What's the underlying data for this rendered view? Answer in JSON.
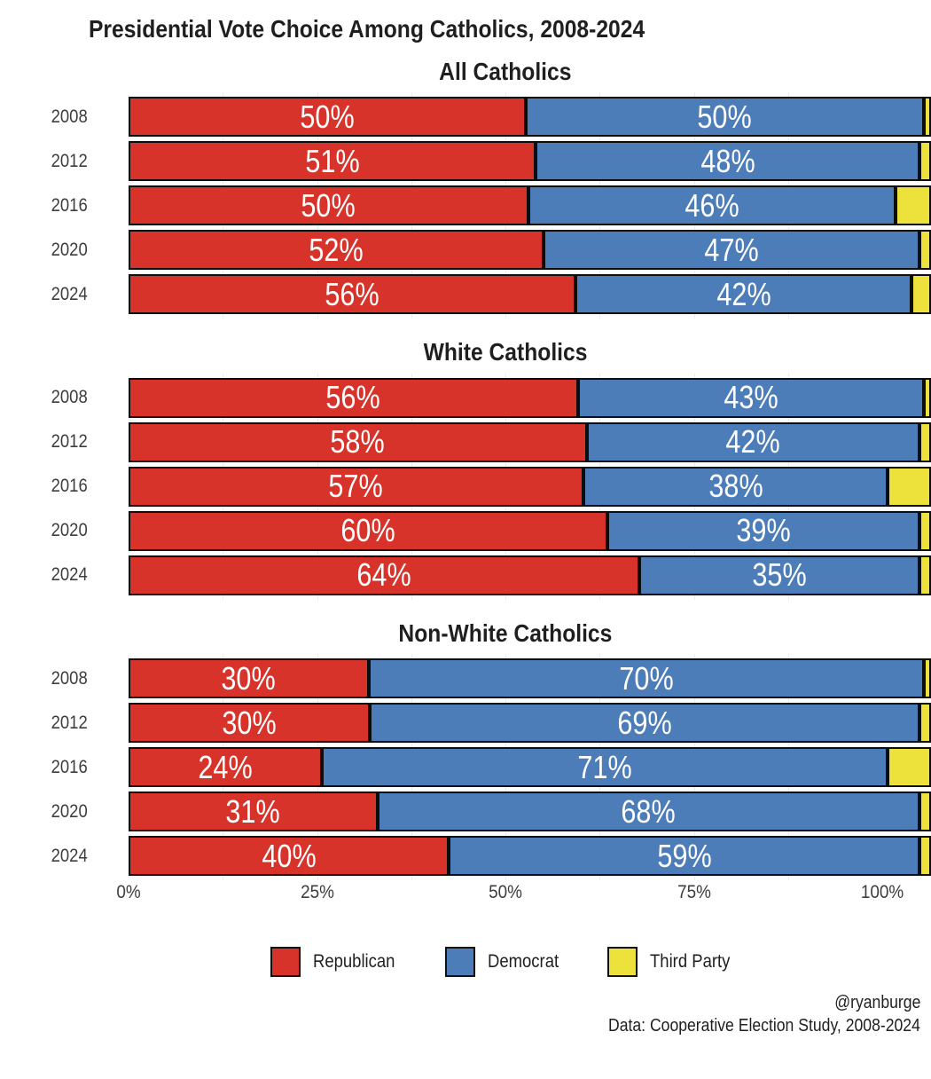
{
  "page": {
    "main_title": "Presidential Vote Choice Among Catholics, 2008-2024",
    "attribution_handle": "@ryanburge",
    "attribution_source": "Data: Cooperative Election Study, 2008-2024"
  },
  "colors": {
    "republican": "#d8332a",
    "democrat": "#4d7db9",
    "third_party": "#ede23c",
    "bar_border": "#0d0d0d"
  },
  "legend": {
    "items": [
      {
        "label": "Republican",
        "key": "republican"
      },
      {
        "label": "Democrat",
        "key": "democrat"
      },
      {
        "label": "Third Party",
        "key": "third-party"
      }
    ]
  },
  "x_axis": {
    "tick_labels": [
      "0%",
      "25%",
      "50%",
      "75%",
      "100%"
    ],
    "tick_values": [
      0,
      25,
      50,
      75,
      100
    ]
  },
  "chart_data": [
    {
      "type": "bar",
      "orientation": "horizontal",
      "stacked": true,
      "title": "All Catholics",
      "categories": [
        "2008",
        "2012",
        "2016",
        "2020",
        "2024"
      ],
      "xlim": [
        0,
        100
      ],
      "series": [
        {
          "name": "Republican",
          "key": "republican",
          "values": [
            50,
            51,
            50,
            52,
            56
          ],
          "labels": [
            "50%",
            "51%",
            "50%",
            "52%",
            "56%"
          ]
        },
        {
          "name": "Democrat",
          "key": "democrat",
          "values": [
            50,
            48,
            46,
            47,
            42
          ],
          "labels": [
            "50%",
            "48%",
            "46%",
            "47%",
            "42%"
          ]
        },
        {
          "name": "Third Party",
          "key": "third-party",
          "values": [
            0.5,
            1,
            4,
            1,
            2
          ],
          "labels": [
            "",
            "",
            "",
            "",
            ""
          ]
        }
      ]
    },
    {
      "type": "bar",
      "orientation": "horizontal",
      "stacked": true,
      "title": "White Catholics",
      "categories": [
        "2008",
        "2012",
        "2016",
        "2020",
        "2024"
      ],
      "xlim": [
        0,
        100
      ],
      "series": [
        {
          "name": "Republican",
          "key": "republican",
          "values": [
            56,
            58,
            57,
            60,
            64
          ],
          "labels": [
            "56%",
            "58%",
            "57%",
            "60%",
            "64%"
          ]
        },
        {
          "name": "Democrat",
          "key": "democrat",
          "values": [
            43,
            42,
            38,
            39,
            35
          ],
          "labels": [
            "43%",
            "42%",
            "38%",
            "39%",
            "35%"
          ]
        },
        {
          "name": "Third Party",
          "key": "third-party",
          "values": [
            0.5,
            1,
            5,
            1,
            1
          ],
          "labels": [
            "",
            "",
            "",
            "",
            ""
          ]
        }
      ]
    },
    {
      "type": "bar",
      "orientation": "horizontal",
      "stacked": true,
      "title": "Non-White Catholics",
      "categories": [
        "2008",
        "2012",
        "2016",
        "2020",
        "2024"
      ],
      "xlim": [
        0,
        100
      ],
      "series": [
        {
          "name": "Republican",
          "key": "republican",
          "values": [
            30,
            30,
            24,
            31,
            40
          ],
          "labels": [
            "30%",
            "30%",
            "24%",
            "31%",
            "40%"
          ]
        },
        {
          "name": "Democrat",
          "key": "democrat",
          "values": [
            70,
            69,
            71,
            68,
            59
          ],
          "labels": [
            "70%",
            "69%",
            "71%",
            "68%",
            "59%"
          ]
        },
        {
          "name": "Third Party",
          "key": "third-party",
          "values": [
            0.5,
            1,
            5,
            1,
            1
          ],
          "labels": [
            "",
            "",
            "",
            "",
            ""
          ]
        }
      ]
    }
  ]
}
